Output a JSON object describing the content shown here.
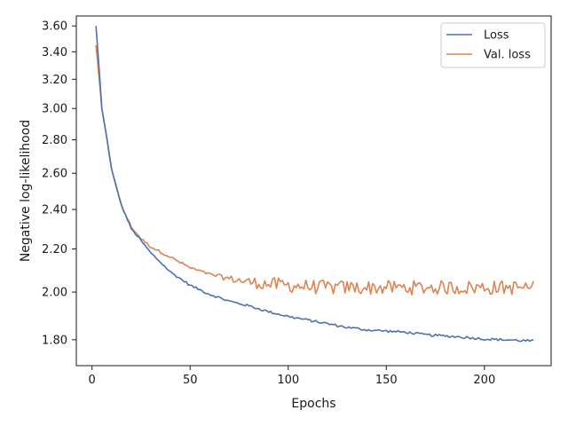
{
  "chart_data": {
    "type": "line",
    "title": "",
    "xlabel": "Epochs",
    "ylabel": "Negative log-likelihood",
    "xlim": [
      -8,
      234
    ],
    "ylim": [
      1.7,
      3.68
    ],
    "y_scale": "log",
    "grid": false,
    "legend_position": "top-right",
    "x_ticks": [
      0,
      50,
      100,
      150,
      200
    ],
    "x_tick_labels": [
      "0",
      "50",
      "100",
      "150",
      "200"
    ],
    "y_ticks": [
      1.8,
      2.0,
      2.2,
      2.4,
      2.6,
      2.8,
      3.0,
      3.2,
      3.4,
      3.6
    ],
    "y_tick_labels": [
      "1.80",
      "2.00",
      "2.20",
      "2.40",
      "2.60",
      "2.80",
      "3.00",
      "3.20",
      "3.40",
      "3.60"
    ],
    "series_info": [
      {
        "name": "Loss",
        "color": "#4c72b0"
      },
      {
        "name": "Val. loss",
        "color": "#dd8452"
      }
    ],
    "loss_keypoints": [
      [
        2,
        3.6
      ],
      [
        5,
        3.0
      ],
      [
        10,
        2.62
      ],
      [
        15,
        2.42
      ],
      [
        20,
        2.3
      ],
      [
        30,
        2.18
      ],
      [
        40,
        2.09
      ],
      [
        50,
        2.03
      ],
      [
        60,
        1.99
      ],
      [
        70,
        1.96
      ],
      [
        80,
        1.94
      ],
      [
        90,
        1.915
      ],
      [
        100,
        1.895
      ],
      [
        110,
        1.88
      ],
      [
        120,
        1.865
      ],
      [
        130,
        1.85
      ],
      [
        140,
        1.84
      ],
      [
        150,
        1.835
      ],
      [
        160,
        1.83
      ],
      [
        170,
        1.82
      ],
      [
        180,
        1.815
      ],
      [
        190,
        1.81
      ],
      [
        200,
        1.803
      ],
      [
        210,
        1.8
      ],
      [
        225,
        1.795
      ]
    ],
    "val_loss_keypoints": [
      [
        2,
        3.45
      ],
      [
        5,
        3.0
      ],
      [
        10,
        2.62
      ],
      [
        15,
        2.42
      ],
      [
        20,
        2.31
      ],
      [
        25,
        2.25
      ],
      [
        30,
        2.21
      ],
      [
        40,
        2.16
      ],
      [
        50,
        2.11
      ],
      [
        60,
        2.08
      ],
      [
        70,
        2.06
      ],
      [
        80,
        2.045
      ],
      [
        90,
        2.035
      ],
      [
        100,
        2.03
      ],
      [
        120,
        2.02
      ],
      [
        150,
        2.02
      ],
      [
        180,
        2.02
      ],
      [
        225,
        2.02
      ]
    ],
    "loss_noise": 0.005,
    "val_loss_noise_early": 0.006,
    "val_loss_noise_late": 0.032,
    "noise_onset_epoch": 90,
    "epochs_start": 2,
    "epochs_end": 225
  }
}
